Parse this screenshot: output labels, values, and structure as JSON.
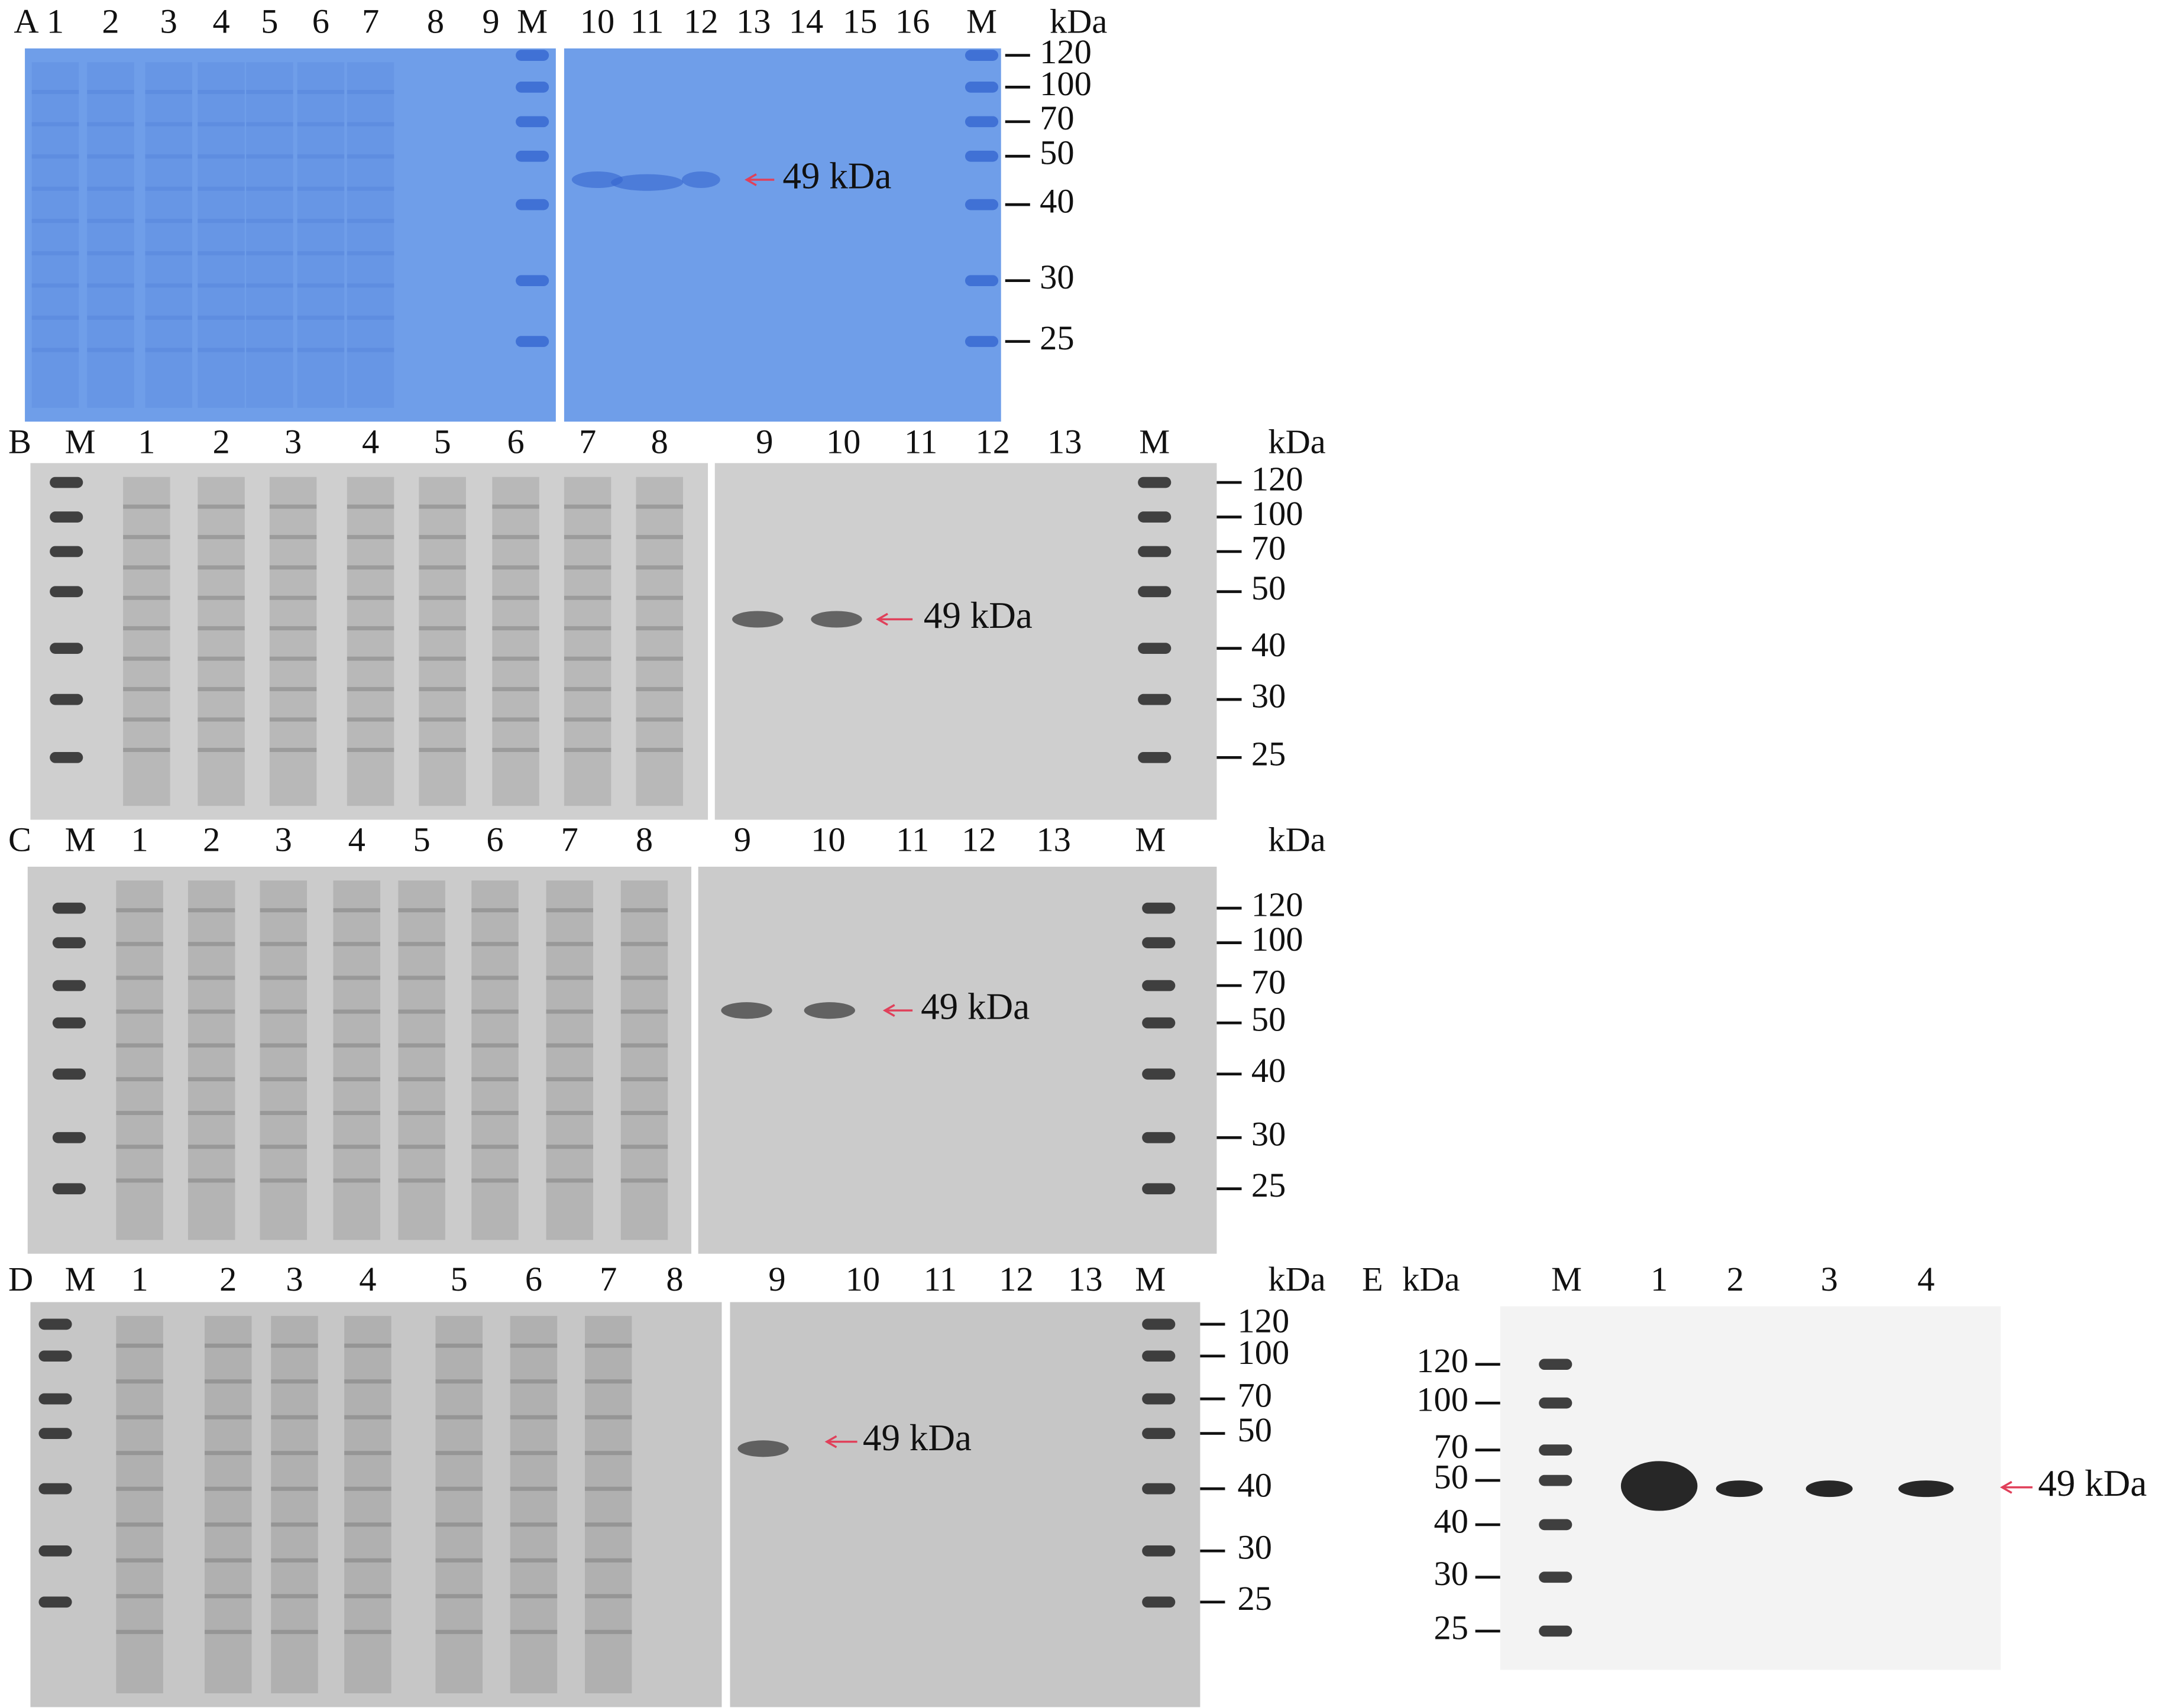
{
  "panels": [
    {
      "label": "A",
      "unit": "kDa",
      "lanes": [
        "1",
        "2",
        "3",
        "4",
        "5",
        "6",
        "7",
        "8",
        "9",
        "M",
        "10",
        "11",
        "12",
        "13",
        "14",
        "15",
        "16",
        "M"
      ],
      "markers": [
        "120",
        "100",
        "70",
        "50",
        "40",
        "30",
        "25"
      ],
      "annotation": "49 kDa"
    },
    {
      "label": "B",
      "unit": "kDa",
      "lanes": [
        "M",
        "1",
        "2",
        "3",
        "4",
        "5",
        "6",
        "7",
        "8",
        "9",
        "10",
        "11",
        "12",
        "13",
        "M"
      ],
      "markers": [
        "120",
        "100",
        "70",
        "50",
        "40",
        "30",
        "25"
      ],
      "annotation": "49 kDa"
    },
    {
      "label": "C",
      "unit": "kDa",
      "lanes": [
        "M",
        "1",
        "2",
        "3",
        "4",
        "5",
        "6",
        "7",
        "8",
        "9",
        "10",
        "11",
        "12",
        "13",
        "M"
      ],
      "markers": [
        "120",
        "100",
        "70",
        "50",
        "40",
        "30",
        "25"
      ],
      "annotation": "49 kDa"
    },
    {
      "label": "D",
      "unit": "kDa",
      "lanes": [
        "M",
        "1",
        "2",
        "3",
        "4",
        "5",
        "6",
        "7",
        "8",
        "9",
        "10",
        "11",
        "12",
        "13",
        "M"
      ],
      "markers": [
        "120",
        "100",
        "70",
        "50",
        "40",
        "30",
        "25"
      ],
      "annotation": "49 kDa"
    },
    {
      "label": "E",
      "unit": "kDa",
      "lanes": [
        "M",
        "1",
        "2",
        "3",
        "4"
      ],
      "markers": [
        "120",
        "100",
        "70",
        "50",
        "40",
        "30",
        "25"
      ],
      "annotation": "49 kDa"
    }
  ]
}
